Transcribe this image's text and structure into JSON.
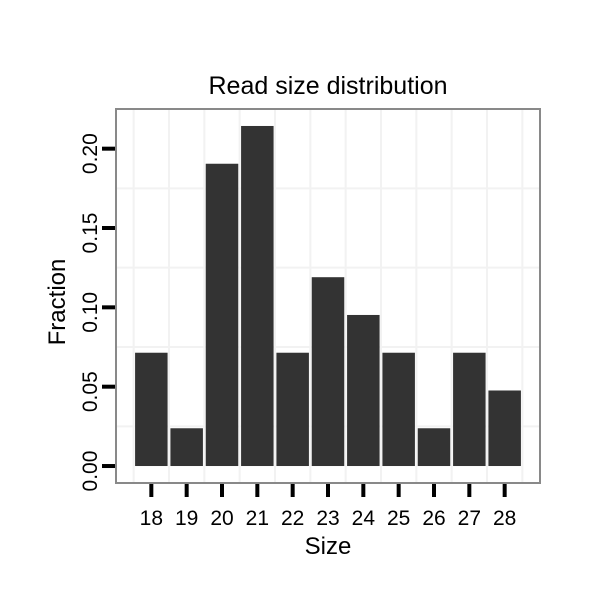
{
  "chart_data": {
    "type": "bar",
    "title": "Read size distribution",
    "xlabel": "Size",
    "ylabel": "Fraction",
    "categories": [
      18,
      19,
      20,
      21,
      22,
      23,
      24,
      25,
      26,
      27,
      28
    ],
    "values": [
      0.0714,
      0.0238,
      0.1905,
      0.2143,
      0.0714,
      0.119,
      0.0952,
      0.0714,
      0.0238,
      0.0714,
      0.0476
    ],
    "x_tick_labels": [
      "18",
      "19",
      "20",
      "21",
      "22",
      "23",
      "24",
      "25",
      "26",
      "27",
      "28"
    ],
    "y_tick_values": [
      0,
      0.05,
      0.1,
      0.15,
      0.2
    ],
    "y_tick_labels": [
      "0.00",
      "0.05",
      "0.10",
      "0.15",
      "0.20"
    ],
    "xlim": [
      17.0,
      29.0
    ],
    "ylim": [
      -0.0107,
      0.225
    ],
    "bar_width": 0.92,
    "x_minor_gridlines": [
      17.5,
      18.5,
      19.5,
      20.5,
      21.5,
      22.5,
      23.5,
      24.5,
      25.5,
      26.5,
      27.5,
      28.5
    ],
    "y_minor_gridlines": [
      0.025,
      0.075,
      0.125,
      0.175,
      0.225
    ],
    "grid": "minor-only",
    "legend": "none",
    "colors": {
      "bar": "#333333",
      "grid": "#f2f2f2",
      "panel_border": "#898989",
      "panel_bg": "#ffffff",
      "tick": "#000000",
      "text": "#000000",
      "background": "#ffffff"
    }
  }
}
